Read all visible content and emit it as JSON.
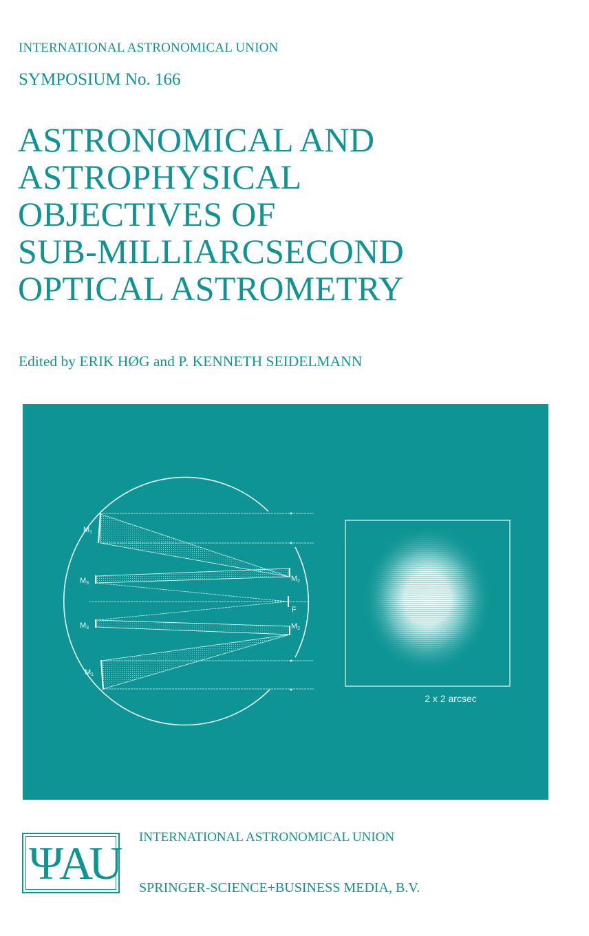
{
  "cover": {
    "series": "INTERNATIONAL ASTRONOMICAL UNION",
    "symposium": "SYMPOSIUM No. 166",
    "title_lines": [
      "ASTRONOMICAL AND",
      "ASTROPHYSICAL",
      "OBJECTIVES OF",
      "SUB-MILLIARCSECOND",
      "OPTICAL ASTROMETRY"
    ],
    "editors": "Edited by ERIK HØG and P. KENNETH SEIDELMANN"
  },
  "illustration": {
    "background_color": "#0e9494",
    "labels": {
      "m1": "M",
      "m1_sub": "1",
      "m2": "M",
      "m2_sub": "2",
      "m3": "M",
      "m3_sub": "3",
      "focus": "F"
    },
    "image_caption": "2 x 2 arcsec"
  },
  "footer": {
    "logo_text": "ΨAU",
    "organization": "INTERNATIONAL ASTRONOMICAL UNION",
    "publisher": "SPRINGER-SCIENCE+BUSINESS MEDIA, B.V."
  },
  "colors": {
    "text": "#129393",
    "panel": "#0e9494",
    "line": "#e8f7f7"
  }
}
